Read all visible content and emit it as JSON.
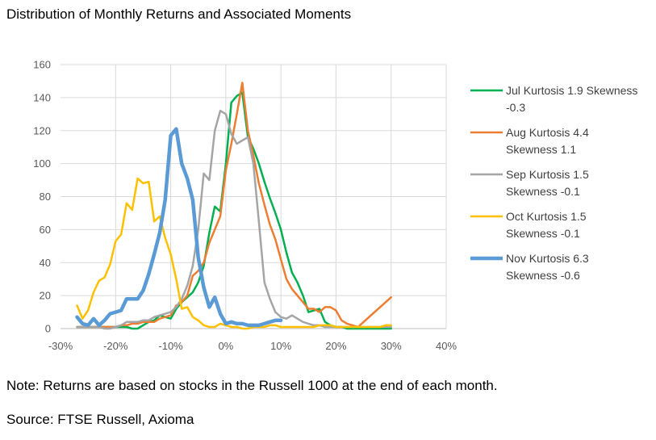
{
  "title": "Distribution of Monthly Returns and Associated Moments",
  "note": "Note: Returns are based on stocks in the Russell 1000 at the end of each month.",
  "source": "Source: FTSE Russell, Axioma",
  "chart_data": {
    "type": "line",
    "title": "Distribution of Monthly Returns and Associated Moments",
    "xlabel": "",
    "ylabel": "",
    "xlim": [
      -30,
      40
    ],
    "ylim": [
      0,
      160
    ],
    "grid": true,
    "legend_position": "right",
    "x_ticks": [
      "-30%",
      "-20%",
      "-10%",
      "0%",
      "10%",
      "20%",
      "30%",
      "40%"
    ],
    "y_ticks": [
      "0",
      "20",
      "40",
      "60",
      "80",
      "100",
      "120",
      "140",
      "160"
    ],
    "series": [
      {
        "name": "Jul Kurtosis 1.9 Skewness -0.3",
        "legend_lines": [
          "Jul Kurtosis 1.9 Skewness",
          "-0.3"
        ],
        "color": "#00b050",
        "points": [
          [
            -27,
            1
          ],
          [
            -26,
            1
          ],
          [
            -25,
            1
          ],
          [
            -24,
            1
          ],
          [
            -23,
            1
          ],
          [
            -22,
            1
          ],
          [
            -21,
            1
          ],
          [
            -20,
            1
          ],
          [
            -19,
            1
          ],
          [
            -18,
            1
          ],
          [
            -17,
            0
          ],
          [
            -16,
            0
          ],
          [
            -15,
            2
          ],
          [
            -14,
            4
          ],
          [
            -13,
            5
          ],
          [
            -12,
            8
          ],
          [
            -11,
            7
          ],
          [
            -10,
            6
          ],
          [
            -9,
            12
          ],
          [
            -8,
            16
          ],
          [
            -7,
            19
          ],
          [
            -6,
            22
          ],
          [
            -5,
            28
          ],
          [
            -4,
            38
          ],
          [
            -3,
            58
          ],
          [
            -2,
            74
          ],
          [
            -1,
            71
          ],
          [
            0,
            100
          ],
          [
            1,
            137
          ],
          [
            2,
            141
          ],
          [
            3,
            143
          ],
          [
            4,
            116
          ],
          [
            5,
            109
          ],
          [
            6,
            100
          ],
          [
            7,
            89
          ],
          [
            8,
            79
          ],
          [
            9,
            70
          ],
          [
            10,
            60
          ],
          [
            11,
            46
          ],
          [
            12,
            34
          ],
          [
            13,
            28
          ],
          [
            14,
            20
          ],
          [
            15,
            10
          ],
          [
            16,
            11
          ],
          [
            17,
            12
          ],
          [
            18,
            4
          ],
          [
            19,
            2
          ],
          [
            20,
            1
          ],
          [
            21,
            1
          ],
          [
            22,
            0
          ],
          [
            23,
            0
          ],
          [
            24,
            0
          ],
          [
            25,
            0
          ],
          [
            26,
            0
          ],
          [
            27,
            0
          ],
          [
            28,
            0
          ],
          [
            29,
            0
          ],
          [
            30,
            0
          ]
        ]
      },
      {
        "name": "Aug Kurtosis 4.4 Skewness 1.1",
        "legend_lines": [
          "Aug Kurtosis 4.4",
          "Skewness 1.1"
        ],
        "color": "#ed7d31",
        "points": [
          [
            -27,
            1
          ],
          [
            -26,
            1
          ],
          [
            -25,
            1
          ],
          [
            -24,
            1
          ],
          [
            -23,
            1
          ],
          [
            -22,
            1
          ],
          [
            -21,
            1
          ],
          [
            -20,
            1
          ],
          [
            -19,
            2
          ],
          [
            -18,
            2
          ],
          [
            -17,
            3
          ],
          [
            -16,
            3
          ],
          [
            -15,
            4
          ],
          [
            -14,
            4
          ],
          [
            -13,
            4
          ],
          [
            -12,
            6
          ],
          [
            -11,
            7
          ],
          [
            -10,
            8
          ],
          [
            -9,
            14
          ],
          [
            -8,
            16
          ],
          [
            -7,
            20
          ],
          [
            -6,
            32
          ],
          [
            -5,
            35
          ],
          [
            -4,
            40
          ],
          [
            -3,
            52
          ],
          [
            -2,
            60
          ],
          [
            -1,
            68
          ],
          [
            0,
            96
          ],
          [
            1,
            112
          ],
          [
            2,
            130
          ],
          [
            3,
            149
          ],
          [
            4,
            120
          ],
          [
            5,
            105
          ],
          [
            6,
            88
          ],
          [
            7,
            75
          ],
          [
            8,
            63
          ],
          [
            9,
            54
          ],
          [
            10,
            42
          ],
          [
            11,
            30
          ],
          [
            12,
            24
          ],
          [
            13,
            20
          ],
          [
            14,
            16
          ],
          [
            15,
            12
          ],
          [
            16,
            12
          ],
          [
            17,
            10
          ],
          [
            18,
            13
          ],
          [
            19,
            13
          ],
          [
            20,
            11
          ],
          [
            21,
            5
          ],
          [
            22,
            3
          ],
          [
            23,
            2
          ],
          [
            24,
            1
          ],
          [
            25,
            4
          ],
          [
            26,
            7
          ],
          [
            27,
            10
          ],
          [
            28,
            13
          ],
          [
            29,
            16
          ],
          [
            30,
            19
          ]
        ]
      },
      {
        "name": "Sep Kurtosis 1.5 Skewness -0.1",
        "legend_lines": [
          "Sep Kurtosis 1.5",
          "Skewness -0.1"
        ],
        "color": "#a5a5a5",
        "points": [
          [
            -27,
            1
          ],
          [
            -26,
            1
          ],
          [
            -25,
            1
          ],
          [
            -24,
            1
          ],
          [
            -23,
            1
          ],
          [
            -22,
            0
          ],
          [
            -21,
            0
          ],
          [
            -20,
            1
          ],
          [
            -19,
            2
          ],
          [
            -18,
            4
          ],
          [
            -17,
            4
          ],
          [
            -16,
            4
          ],
          [
            -15,
            5
          ],
          [
            -14,
            5
          ],
          [
            -13,
            7
          ],
          [
            -12,
            8
          ],
          [
            -11,
            9
          ],
          [
            -10,
            10
          ],
          [
            -9,
            13
          ],
          [
            -8,
            18
          ],
          [
            -7,
            26
          ],
          [
            -6,
            38
          ],
          [
            -5,
            60
          ],
          [
            -4,
            94
          ],
          [
            -3,
            90
          ],
          [
            -2,
            120
          ],
          [
            -1,
            132
          ],
          [
            0,
            130
          ],
          [
            1,
            118
          ],
          [
            2,
            112
          ],
          [
            3,
            114
          ],
          [
            4,
            116
          ],
          [
            5,
            100
          ],
          [
            6,
            65
          ],
          [
            7,
            28
          ],
          [
            8,
            18
          ],
          [
            9,
            10
          ],
          [
            10,
            7
          ],
          [
            11,
            6
          ],
          [
            12,
            8
          ],
          [
            13,
            6
          ],
          [
            14,
            4
          ],
          [
            15,
            3
          ],
          [
            16,
            2
          ],
          [
            17,
            2
          ],
          [
            18,
            1
          ],
          [
            19,
            1
          ],
          [
            20,
            1
          ],
          [
            21,
            1
          ],
          [
            22,
            1
          ],
          [
            23,
            1
          ],
          [
            24,
            1
          ],
          [
            25,
            1
          ],
          [
            26,
            1
          ],
          [
            27,
            1
          ],
          [
            28,
            1
          ],
          [
            29,
            1
          ],
          [
            30,
            1
          ]
        ]
      },
      {
        "name": "Oct Kurtosis 1.5 Skewness -0.1",
        "legend_lines": [
          "Oct Kurtosis 1.5",
          "Skewness -0.1"
        ],
        "color": "#ffc000",
        "points": [
          [
            -27,
            14
          ],
          [
            -26,
            6
          ],
          [
            -25,
            11
          ],
          [
            -24,
            22
          ],
          [
            -23,
            29
          ],
          [
            -22,
            31
          ],
          [
            -21,
            39
          ],
          [
            -20,
            53
          ],
          [
            -19,
            57
          ],
          [
            -18,
            76
          ],
          [
            -17,
            72
          ],
          [
            -16,
            91
          ],
          [
            -15,
            88
          ],
          [
            -14,
            89
          ],
          [
            -13,
            65
          ],
          [
            -12,
            68
          ],
          [
            -11,
            55
          ],
          [
            -10,
            45
          ],
          [
            -9,
            30
          ],
          [
            -8,
            12
          ],
          [
            -7,
            13
          ],
          [
            -6,
            7
          ],
          [
            -5,
            5
          ],
          [
            -4,
            2
          ],
          [
            -3,
            1
          ],
          [
            -2,
            1
          ],
          [
            -1,
            3
          ],
          [
            0,
            2
          ],
          [
            1,
            1
          ],
          [
            2,
            1
          ],
          [
            3,
            0
          ],
          [
            4,
            0
          ],
          [
            5,
            1
          ],
          [
            6,
            1
          ],
          [
            7,
            1
          ],
          [
            8,
            2
          ],
          [
            9,
            2
          ],
          [
            10,
            1
          ],
          [
            11,
            1
          ],
          [
            12,
            1
          ],
          [
            13,
            1
          ],
          [
            14,
            1
          ],
          [
            15,
            1
          ],
          [
            16,
            1
          ],
          [
            17,
            2
          ],
          [
            18,
            2
          ],
          [
            19,
            2
          ],
          [
            20,
            1
          ],
          [
            21,
            1
          ],
          [
            22,
            1
          ],
          [
            23,
            1
          ],
          [
            24,
            1
          ],
          [
            25,
            1
          ],
          [
            26,
            1
          ],
          [
            27,
            1
          ],
          [
            28,
            1
          ],
          [
            29,
            2
          ],
          [
            30,
            2
          ]
        ]
      },
      {
        "name": "Nov Kurtosis 6.3 Skewness -0.6",
        "legend_lines": [
          "Nov Kurtosis 6.3",
          "Skewness -0.6"
        ],
        "color": "#5b9bd5",
        "points": [
          [
            -27,
            7
          ],
          [
            -26,
            3
          ],
          [
            -25,
            2
          ],
          [
            -24,
            6
          ],
          [
            -23,
            2
          ],
          [
            -22,
            5
          ],
          [
            -21,
            9
          ],
          [
            -20,
            10
          ],
          [
            -19,
            11
          ],
          [
            -18,
            18
          ],
          [
            -17,
            18
          ],
          [
            -16,
            18
          ],
          [
            -15,
            23
          ],
          [
            -14,
            33
          ],
          [
            -13,
            45
          ],
          [
            -12,
            58
          ],
          [
            -11,
            78
          ],
          [
            -10,
            117
          ],
          [
            -9,
            121
          ],
          [
            -8,
            100
          ],
          [
            -7,
            91
          ],
          [
            -6,
            78
          ],
          [
            -5,
            43
          ],
          [
            -4,
            25
          ],
          [
            -3,
            13
          ],
          [
            -2,
            19
          ],
          [
            -1,
            9
          ],
          [
            0,
            3
          ],
          [
            1,
            4
          ],
          [
            2,
            3
          ],
          [
            3,
            3
          ],
          [
            4,
            2
          ],
          [
            5,
            2
          ],
          [
            6,
            2
          ],
          [
            7,
            3
          ],
          [
            8,
            4
          ],
          [
            9,
            5
          ],
          [
            10,
            5
          ]
        ]
      }
    ]
  }
}
